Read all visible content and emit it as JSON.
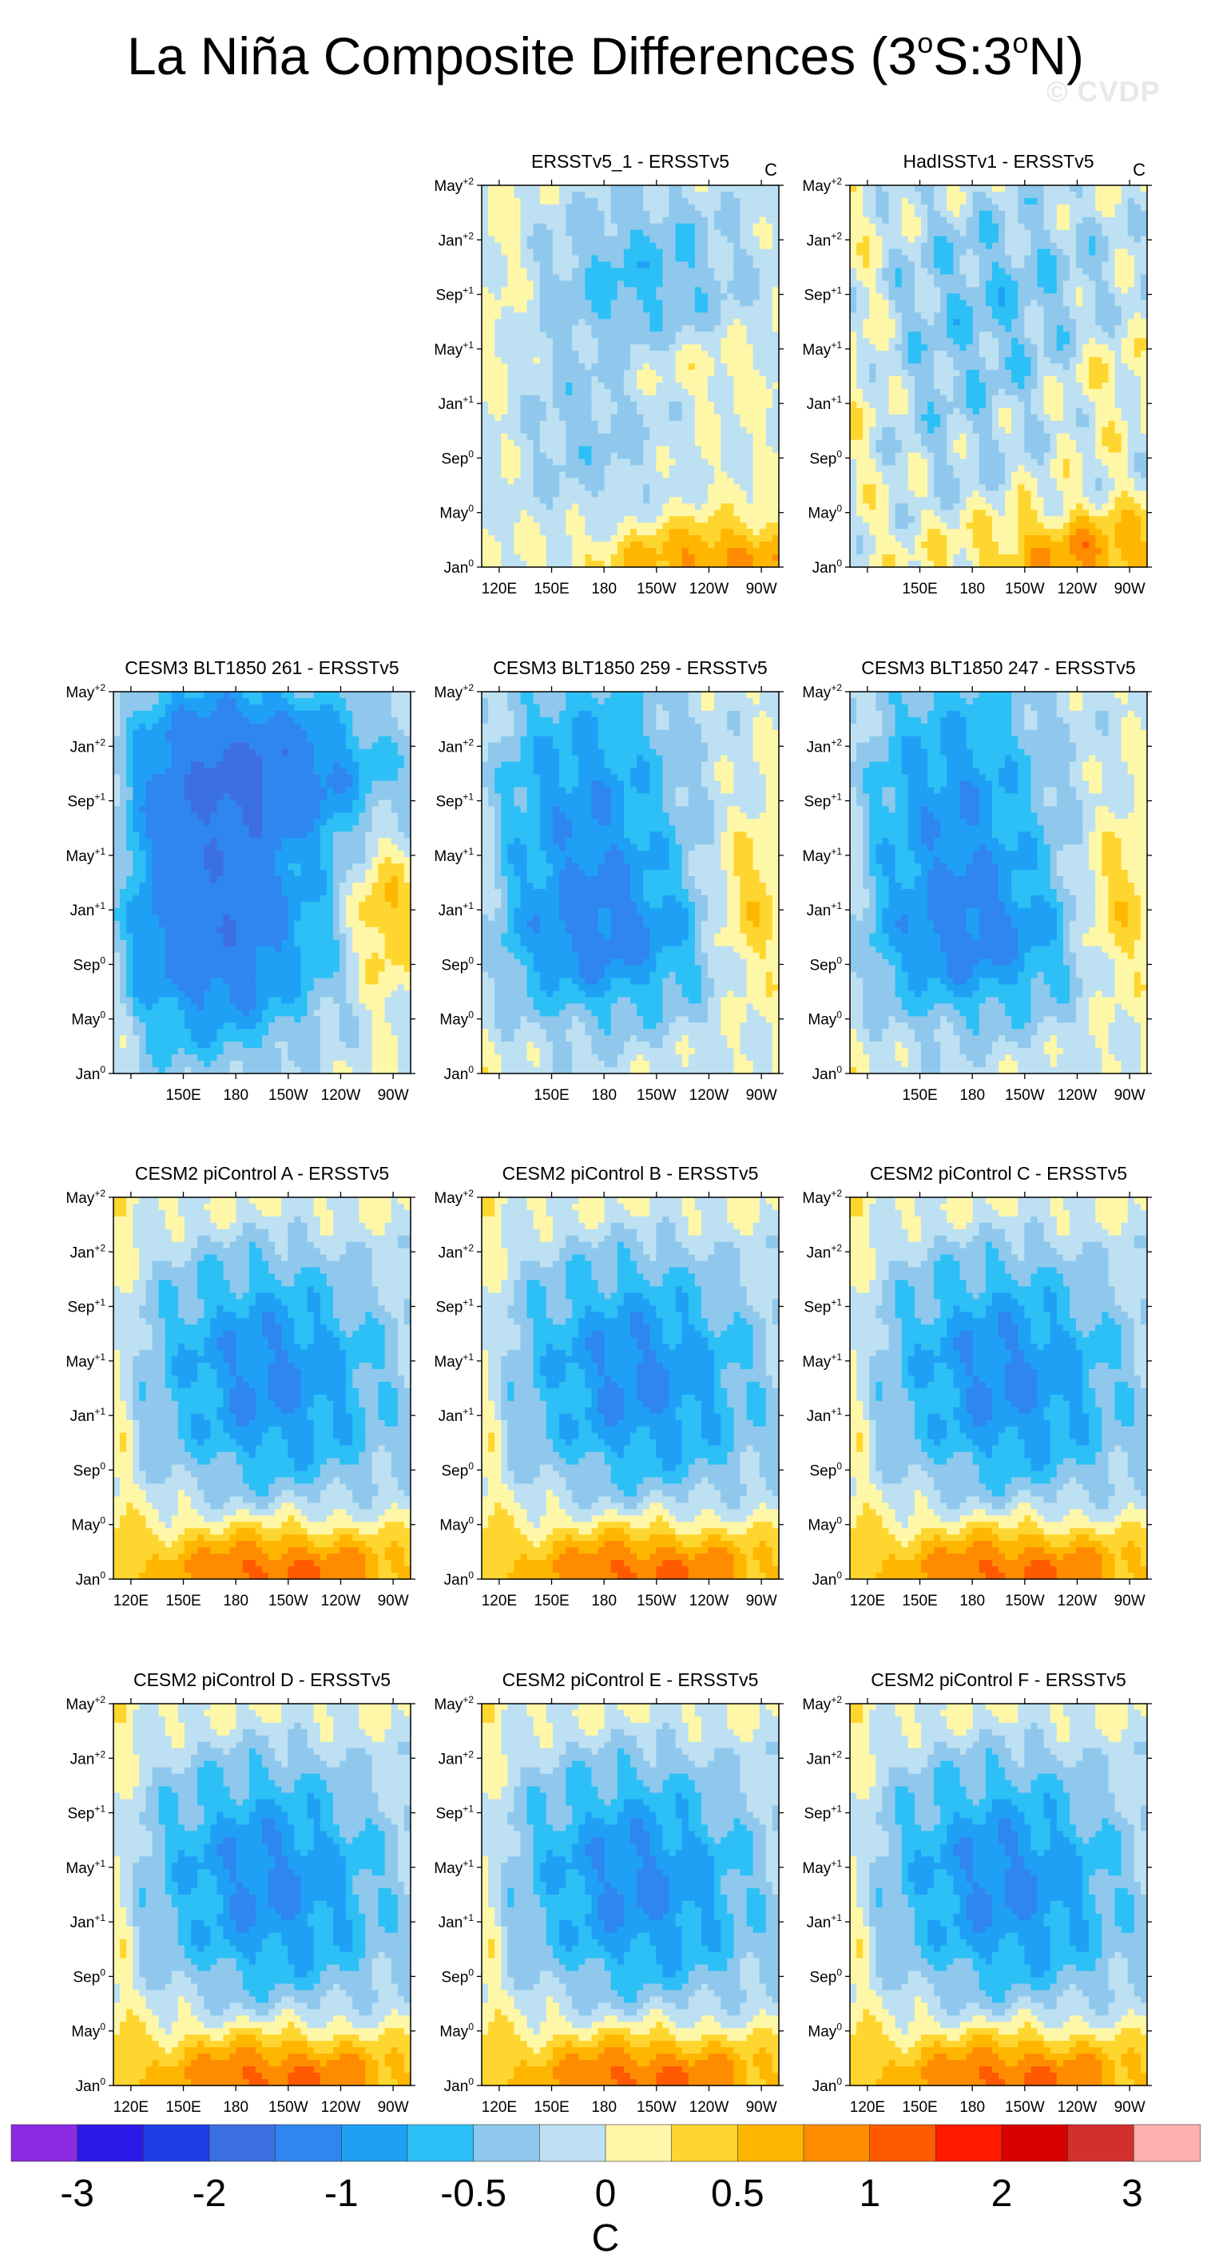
{
  "title": {
    "text": "La Niña Composite Differences (3",
    "sup1": "o",
    "mid": "S:3",
    "sup2": "o",
    "end": "N)"
  },
  "watermark": "© CVDP",
  "chart_data": {
    "type": "heatmap",
    "y_ticks": [
      {
        "base": "Jan",
        "sup": "0"
      },
      {
        "base": "May",
        "sup": "0"
      },
      {
        "base": "Sep",
        "sup": "0"
      },
      {
        "base": "Jan",
        "sup": "+1"
      },
      {
        "base": "May",
        "sup": "+1"
      },
      {
        "base": "Sep",
        "sup": "+1"
      },
      {
        "base": "Jan",
        "sup": "+2"
      },
      {
        "base": "May",
        "sup": "+2"
      }
    ],
    "x_ticks": [
      "120E",
      "150E",
      "180",
      "150W",
      "120W",
      "90W"
    ],
    "x_range": [
      110,
      280
    ],
    "units": "C",
    "panels": [
      {
        "title": "ERSSTv5_1 - ERSSTv5",
        "row": 0,
        "col": 1,
        "units": "C",
        "x_ticks_shown": [
          "120E",
          "150E",
          "180",
          "150W",
          "120W",
          "90W"
        ],
        "pattern": "obs"
      },
      {
        "title": "HadISSTv1 - ERSSTv5",
        "row": 0,
        "col": 2,
        "units": "C",
        "x_ticks_shown": [
          "150E",
          "180",
          "150W",
          "120W",
          "90W"
        ],
        "pattern": "obs2"
      },
      {
        "title": "CESM3 BLT1850 261 - ERSSTv5",
        "row": 1,
        "col": 0,
        "x_ticks_shown": [
          "150E",
          "180",
          "150W",
          "120W",
          "90W"
        ],
        "pattern": "cold_strong"
      },
      {
        "title": "CESM3 BLT1850 259 - ERSSTv5",
        "row": 1,
        "col": 1,
        "x_ticks_shown": [
          "150E",
          "180",
          "150W",
          "120W",
          "90W"
        ],
        "pattern": "cold_mid"
      },
      {
        "title": "CESM3 BLT1850 247 - ERSSTv5",
        "row": 1,
        "col": 2,
        "x_ticks_shown": [
          "150E",
          "180",
          "150W",
          "120W",
          "90W"
        ],
        "pattern": "cold_mid"
      },
      {
        "title": "CESM2 piControl A - ERSSTv5",
        "row": 2,
        "col": 0,
        "x_ticks_shown": [
          "120E",
          "150E",
          "180",
          "150W",
          "120W",
          "90W"
        ],
        "pattern": "warm_bottom"
      },
      {
        "title": "CESM2 piControl B - ERSSTv5",
        "row": 2,
        "col": 1,
        "x_ticks_shown": [
          "120E",
          "150E",
          "180",
          "150W",
          "120W",
          "90W"
        ],
        "pattern": "warm_bottom"
      },
      {
        "title": "CESM2 piControl C - ERSSTv5",
        "row": 2,
        "col": 2,
        "x_ticks_shown": [
          "120E",
          "150E",
          "180",
          "150W",
          "120W",
          "90W"
        ],
        "pattern": "warm_bottom"
      },
      {
        "title": "CESM2 piControl D - ERSSTv5",
        "row": 3,
        "col": 0,
        "x_ticks_shown": [
          "120E",
          "150E",
          "180",
          "150W",
          "120W",
          "90W"
        ],
        "pattern": "warm_bottom"
      },
      {
        "title": "CESM2 piControl E - ERSSTv5",
        "row": 3,
        "col": 1,
        "x_ticks_shown": [
          "120E",
          "150E",
          "180",
          "150W",
          "120W",
          "90W"
        ],
        "pattern": "warm_bottom"
      },
      {
        "title": "CESM2 piControl F - ERSSTv5",
        "row": 3,
        "col": 2,
        "x_ticks_shown": [
          "120E",
          "150E",
          "180",
          "150W",
          "120W",
          "90W"
        ],
        "pattern": "warm_bottom"
      }
    ],
    "colorbar": {
      "colors": [
        "#8a2be2",
        "#2b1ae8",
        "#1e3fe6",
        "#3c6fe0",
        "#2f86f0",
        "#1fa0f5",
        "#2cc0f6",
        "#8fc8ec",
        "#bde0f2",
        "#fff7a8",
        "#ffd630",
        "#ffb600",
        "#ff8c00",
        "#ff5a00",
        "#ff1a00",
        "#d80000",
        "#d42f2f",
        "#ffb1b1"
      ],
      "labels": [
        "-3",
        "-2",
        "-1",
        "-0.5",
        "0",
        "0.5",
        "1",
        "2",
        "3"
      ],
      "units": "C"
    }
  }
}
